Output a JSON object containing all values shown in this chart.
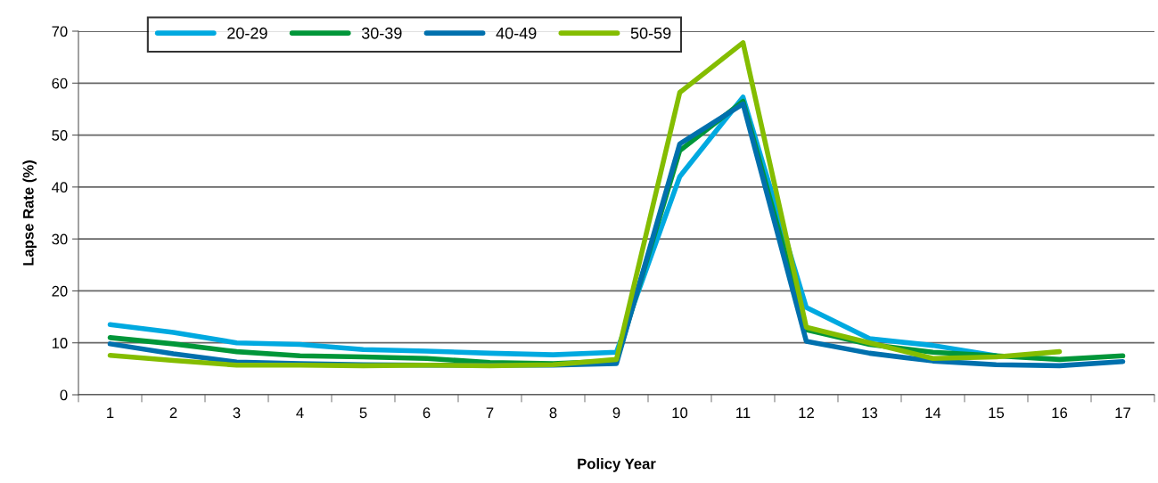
{
  "chart_data": {
    "type": "line",
    "xlabel": "Policy Year",
    "ylabel": "Lapse Rate (%)",
    "categories": [
      "1",
      "2",
      "3",
      "4",
      "5",
      "6",
      "7",
      "8",
      "9",
      "10",
      "11",
      "12",
      "13",
      "14",
      "15",
      "16",
      "17"
    ],
    "series": [
      {
        "name": "20-29",
        "color": "#00a9e0",
        "values": [
          13.5,
          12,
          10,
          9.7,
          8.7,
          8.4,
          8,
          7.7,
          8.2,
          42,
          57.3,
          16.8,
          10.8,
          9.5,
          7.5,
          null,
          null
        ]
      },
      {
        "name": "30-39",
        "color": "#009639",
        "values": [
          11,
          9.8,
          8.3,
          7.5,
          7.3,
          7,
          6.2,
          6,
          6.5,
          47,
          56.5,
          12.5,
          9.7,
          8.2,
          7.5,
          6.8,
          7.5
        ]
      },
      {
        "name": "40-49",
        "color": "#0070ad",
        "values": [
          9.8,
          7.9,
          6.3,
          6,
          5.8,
          5.7,
          5.7,
          5.7,
          6,
          48.3,
          56,
          10.3,
          8,
          6.5,
          5.8,
          5.6,
          6.4
        ]
      },
      {
        "name": "50-59",
        "color": "#84bd00",
        "values": [
          7.6,
          6.6,
          5.7,
          5.7,
          5.6,
          5.7,
          5.6,
          5.8,
          6.8,
          58.2,
          67.8,
          13,
          10,
          7,
          7.3,
          8.3,
          null
        ]
      }
    ],
    "ylim": [
      0,
      70
    ],
    "yticks": [
      0,
      10,
      20,
      30,
      40,
      50,
      60,
      70
    ],
    "grid": "y",
    "legend": "top left",
    "line_style": "solid",
    "marker": "none"
  }
}
